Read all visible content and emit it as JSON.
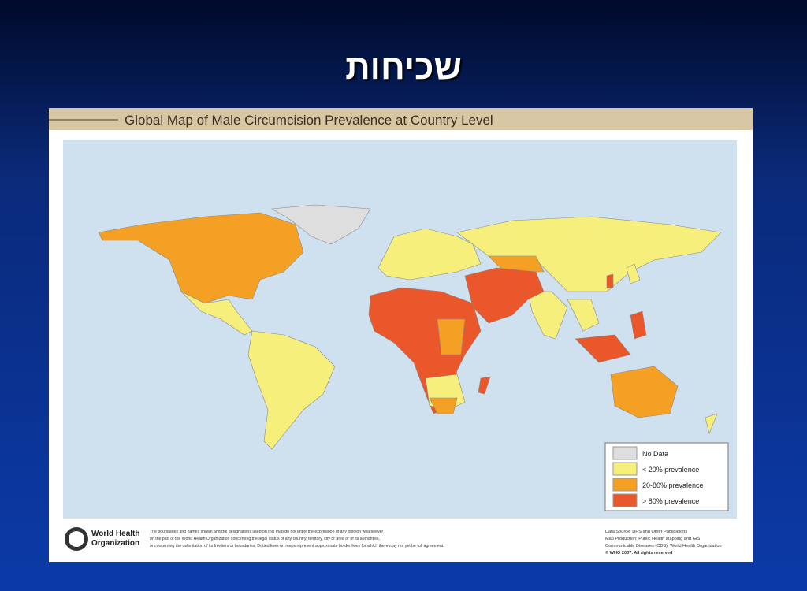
{
  "slide_title": "שכיחות",
  "map": {
    "title": "Global Map of Male Circumcision Prevalence at Country Level",
    "legend": [
      {
        "label": "No Data",
        "color": "#dedede"
      },
      {
        "label": "< 20% prevalence",
        "color": "#f6ef7c"
      },
      {
        "label": "20-80% prevalence",
        "color": "#f4a024"
      },
      {
        "label": "> 80% prevalence",
        "color": "#e9572b"
      }
    ],
    "logo": [
      "World Health",
      "Organization"
    ],
    "disclaimer": [
      "The boundaries and names shown and the designations used on this map do not imply the expression of any opinion whatsoever",
      "on the part of the World Health Organization concerning the legal status of any country, territory, city or area or of its authorities,",
      "or concerning the delimitation of its frontiers or boundaries.  Dotted lines on maps represent approximate border lines for which there may not yet be full agreement."
    ],
    "source": [
      "Data Source: DHS and Other Publications",
      "Map Production: Public Health Mapping and GIS",
      "Communicable Diseases (CDS), World Health Organization",
      "© WHO 2007. All rights reserved"
    ]
  }
}
